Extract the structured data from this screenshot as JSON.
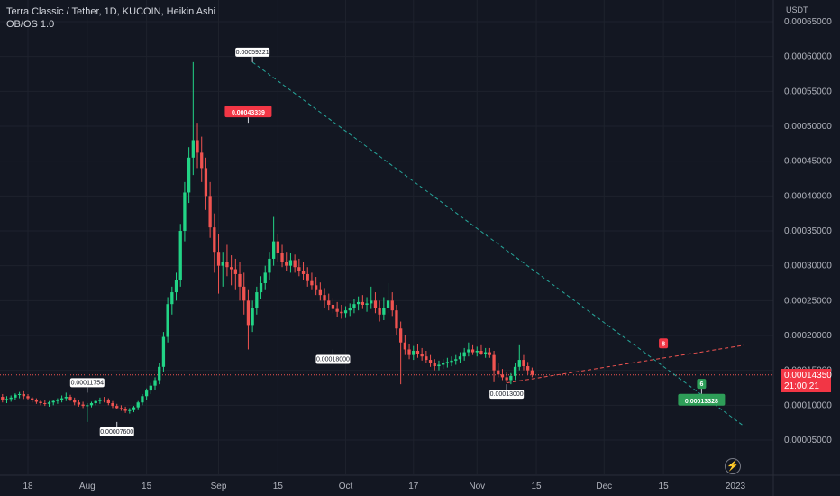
{
  "header": {
    "title": "Terra Classic / Tether, 1D, KUCOIN, Heikin Ashi",
    "indicator": "OB/OS 1.0"
  },
  "axis": {
    "currency": "USDT"
  },
  "last_price": {
    "value": "0.00014350",
    "countdown": "21:00:21"
  },
  "icons": {
    "bolt": "lightning-icon"
  },
  "colors": {
    "up": "#22d486",
    "down": "#f05350",
    "background": "#131722",
    "grid": "#1e222d",
    "trendline_green": "#26a69a",
    "trendline_red": "#f05350"
  },
  "chart_data": {
    "type": "candlestick",
    "style": "Heikin Ashi",
    "grid": true,
    "ylim": [
      5e-05,
      0.00065
    ],
    "y_ticks": [
      "0.00065000",
      "0.00060000",
      "0.00055000",
      "0.00050000",
      "0.00045000",
      "0.00040000",
      "0.00035000",
      "0.00030000",
      "0.00025000",
      "0.00020000",
      "0.00015000",
      "0.00010000",
      "0.00005000"
    ],
    "x_ticks": [
      "18",
      "Aug",
      "15",
      "Sep",
      "15",
      "Oct",
      "17",
      "Nov",
      "15",
      "Dec",
      "15",
      "2023"
    ],
    "x_tick_dates": [
      "2022-07-18",
      "2022-08-01",
      "2022-08-15",
      "2022-09-01",
      "2022-09-15",
      "2022-10-01",
      "2022-10-17",
      "2022-11-01",
      "2022-11-15",
      "2022-12-01",
      "2022-12-15",
      "2023-01-01"
    ],
    "start_date": "2022-07-11",
    "candles": [
      [
        0.000113,
        0.000118,
        0.000107,
        0.000112
      ],
      [
        0.000112,
        0.000116,
        0.000104,
        0.000108
      ],
      [
        0.000108,
        0.000113,
        0.000103,
        0.000109
      ],
      [
        0.000109,
        0.000114,
        0.000105,
        0.000111
      ],
      [
        0.000111,
        0.000117,
        0.000107,
        0.000115
      ],
      [
        0.000115,
        0.000119,
        0.00011,
        0.000116
      ],
      [
        0.000116,
        0.00012,
        0.000109,
        0.000113
      ],
      [
        0.000113,
        0.000116,
        0.000107,
        0.00011
      ],
      [
        0.00011,
        0.000112,
        0.000104,
        0.000107
      ],
      [
        0.000107,
        0.00011,
        0.000102,
        0.000105
      ],
      [
        0.000105,
        0.000108,
        0.0001,
        0.000103
      ],
      [
        0.000103,
        0.000107,
        9.9e-05,
        0.000102
      ],
      [
        0.000102,
        0.000106,
        9.8e-05,
        0.000104
      ],
      [
        0.000104,
        0.000108,
        0.0001,
        0.000106
      ],
      [
        0.000106,
        0.00011,
        0.000102,
        0.000108
      ],
      [
        0.000108,
        0.000114,
        0.000104,
        0.00011
      ],
      [
        0.00011,
        0.000118,
        0.000106,
        0.000112
      ],
      [
        0.000112,
        0.000115,
        0.000106,
        0.000108
      ],
      [
        0.000108,
        0.000111,
        0.0001,
        0.000104
      ],
      [
        0.000104,
        0.000108,
        9.8e-05,
        0.000101
      ],
      [
        0.000101,
        0.000105,
        9.6e-05,
        9.9e-05
      ],
      [
        9.9e-05,
        0.000103,
        7.6e-05,
        0.0001
      ],
      [
        0.0001,
        0.000105,
        9.7e-05,
        0.000103
      ],
      [
        0.000103,
        0.000108,
        0.0001,
        0.000106
      ],
      [
        0.000106,
        0.000111,
        0.000102,
        0.000108
      ],
      [
        0.000108,
        0.000112,
        0.000104,
        0.000107
      ],
      [
        0.000107,
        0.00011,
        0.0001,
        0.000103
      ],
      [
        0.000103,
        0.000106,
        9.6e-05,
        9.9e-05
      ],
      [
        9.9e-05,
        0.000102,
        9.4e-05,
        9.6e-05
      ],
      [
        9.6e-05,
        0.0001,
        9.2e-05,
        9.4e-05
      ],
      [
        9.4e-05,
        9.8e-05,
        8.9e-05,
        9.2e-05
      ],
      [
        9.2e-05,
        9.6e-05,
        8.8e-05,
        9.3e-05
      ],
      [
        9.3e-05,
        9.9e-05,
        9e-05,
        9.7e-05
      ],
      [
        9.7e-05,
        0.000106,
        9.3e-05,
        0.000104
      ],
      [
        0.000104,
        0.000116,
        0.0001,
        0.000113
      ],
      [
        0.000113,
        0.000124,
        0.000108,
        0.000121
      ],
      [
        0.000121,
        0.000132,
        0.000116,
        0.000128
      ],
      [
        0.000128,
        0.00014,
        0.000122,
        0.000136
      ],
      [
        0.000136,
        0.00016,
        0.00013,
        0.000155
      ],
      [
        0.000155,
        0.000205,
        0.000148,
        0.000198
      ],
      [
        0.000198,
        0.000255,
        0.00019,
        0.000245
      ],
      [
        0.000245,
        0.00027,
        0.00023,
        0.000262
      ],
      [
        0.000262,
        0.00029,
        0.00025,
        0.00028
      ],
      [
        0.00028,
        0.00036,
        0.00027,
        0.00035
      ],
      [
        0.00035,
        0.00042,
        0.000335,
        0.000405
      ],
      [
        0.000405,
        0.00047,
        0.00039,
        0.000455
      ],
      [
        0.000455,
        0.000592,
        0.00043,
        0.00048
      ],
      [
        0.00048,
        0.000505,
        0.00044,
        0.000462
      ],
      [
        0.000462,
        0.000485,
        0.00042,
        0.00044
      ],
      [
        0.00044,
        0.000455,
        0.00038,
        0.0004
      ],
      [
        0.0004,
        0.00042,
        0.00034,
        0.000355
      ],
      [
        0.000355,
        0.000375,
        0.00029,
        0.00032
      ],
      [
        0.00032,
        0.000345,
        0.00026,
        0.0003
      ],
      [
        0.0003,
        0.00032,
        0.00027,
        0.000305
      ],
      [
        0.000305,
        0.00033,
        0.000285,
        0.000298
      ],
      [
        0.000298,
        0.000315,
        0.000272,
        0.000295
      ],
      [
        0.000295,
        0.00031,
        0.000265,
        0.000288
      ],
      [
        0.000288,
        0.000305,
        0.00025,
        0.00027
      ],
      [
        0.00027,
        0.00029,
        0.00023,
        0.00025
      ],
      [
        0.00025,
        0.000265,
        0.00018,
        0.000215
      ],
      [
        0.000215,
        0.00025,
        0.000205,
        0.00024
      ],
      [
        0.00024,
        0.00027,
        0.00023,
        0.000262
      ],
      [
        0.000262,
        0.000285,
        0.000252,
        0.000275
      ],
      [
        0.000275,
        0.0003,
        0.000265,
        0.00029
      ],
      [
        0.00029,
        0.00032,
        0.00028,
        0.00031
      ],
      [
        0.00031,
        0.00037,
        0.0003,
        0.000335
      ],
      [
        0.000335,
        0.000345,
        0.000305,
        0.000318
      ],
      [
        0.000318,
        0.00033,
        0.000298,
        0.000305
      ],
      [
        0.000305,
        0.00032,
        0.000292,
        0.0003
      ],
      [
        0.0003,
        0.000318,
        0.00029,
        0.000308
      ],
      [
        0.000308,
        0.000316,
        0.00029,
        0.000298
      ],
      [
        0.000298,
        0.00031,
        0.000285,
        0.000292
      ],
      [
        0.000292,
        0.000305,
        0.00028,
        0.000288
      ],
      [
        0.000288,
        0.000298,
        0.00027,
        0.000278
      ],
      [
        0.000278,
        0.00029,
        0.000265,
        0.000272
      ],
      [
        0.000272,
        0.000284,
        0.000258,
        0.000265
      ],
      [
        0.000265,
        0.000276,
        0.00025,
        0.000258
      ],
      [
        0.000258,
        0.000268,
        0.00024,
        0.00025
      ],
      [
        0.00025,
        0.00026,
        0.000236,
        0.000244
      ],
      [
        0.000244,
        0.000254,
        0.000232,
        0.000238
      ],
      [
        0.000238,
        0.000248,
        0.000226,
        0.000234
      ],
      [
        0.000234,
        0.000244,
        0.000224,
        0.000232
      ],
      [
        0.000232,
        0.000242,
        0.000225,
        0.000236
      ],
      [
        0.000236,
        0.000246,
        0.000228,
        0.00024
      ],
      [
        0.00024,
        0.000252,
        0.000232,
        0.000245
      ],
      [
        0.000245,
        0.000256,
        0.000236,
        0.000248
      ],
      [
        0.000248,
        0.000258,
        0.000238,
        0.000244
      ],
      [
        0.000244,
        0.000255,
        0.000234,
        0.000246
      ],
      [
        0.000246,
        0.00027,
        0.000238,
        0.00025
      ],
      [
        0.00025,
        0.000262,
        0.000232,
        0.00024
      ],
      [
        0.00024,
        0.00025,
        0.00022,
        0.00023
      ],
      [
        0.00023,
        0.000255,
        0.000222,
        0.00024
      ],
      [
        0.00024,
        0.000275,
        0.000232,
        0.00025
      ],
      [
        0.00025,
        0.000262,
        0.000228,
        0.000236
      ],
      [
        0.000236,
        0.000244,
        0.0002,
        0.00021
      ],
      [
        0.00021,
        0.00022,
        0.00013,
        0.00019
      ],
      [
        0.00019,
        0.0002,
        0.000172,
        0.00018
      ],
      [
        0.00018,
        0.000188,
        0.000166,
        0.000172
      ],
      [
        0.000172,
        0.000185,
        0.000165,
        0.000178
      ],
      [
        0.000178,
        0.000188,
        0.000168,
        0.000174
      ],
      [
        0.000174,
        0.000182,
        0.000164,
        0.00017
      ],
      [
        0.00017,
        0.000178,
        0.00016,
        0.000165
      ],
      [
        0.000165,
        0.000172,
        0.000155,
        0.00016
      ],
      [
        0.00016,
        0.000166,
        0.00015,
        0.000156
      ],
      [
        0.000156,
        0.000164,
        0.00015,
        0.000158
      ],
      [
        0.000158,
        0.000166,
        0.000152,
        0.00016
      ],
      [
        0.00016,
        0.000168,
        0.000154,
        0.000162
      ],
      [
        0.000162,
        0.00017,
        0.000156,
        0.000164
      ],
      [
        0.000164,
        0.000172,
        0.000158,
        0.000166
      ],
      [
        0.000166,
        0.000176,
        0.00016,
        0.00017
      ],
      [
        0.00017,
        0.000182,
        0.000164,
        0.000176
      ],
      [
        0.000176,
        0.00019,
        0.00017,
        0.00018
      ],
      [
        0.00018,
        0.000186,
        0.000172,
        0.000176
      ],
      [
        0.000176,
        0.000184,
        0.00017,
        0.000178
      ],
      [
        0.000178,
        0.000186,
        0.000172,
        0.000174
      ],
      [
        0.000174,
        0.000182,
        0.000168,
        0.000176
      ],
      [
        0.000176,
        0.000182,
        0.000168,
        0.000172
      ],
      [
        0.000172,
        0.000178,
        0.000133,
        0.00015
      ],
      [
        0.00015,
        0.00016,
        0.00014,
        0.000144
      ],
      [
        0.000144,
        0.000152,
        0.000136,
        0.00014
      ],
      [
        0.00014,
        0.000148,
        0.000132,
        0.000136
      ],
      [
        0.000136,
        0.000146,
        0.00013,
        0.000142
      ],
      [
        0.000142,
        0.00016,
        0.000136,
        0.000155
      ],
      [
        0.000155,
        0.000186,
        0.00015,
        0.000165
      ],
      [
        0.000165,
        0.000172,
        0.00015,
        0.000156
      ],
      [
        0.000156,
        0.000162,
        0.000144,
        0.00015
      ],
      [
        0.00015,
        0.000154,
        0.00014,
        0.0001435
      ]
    ],
    "annotations": {
      "labels": [
        {
          "text": "0.00059221",
          "date": "2022-09-09",
          "price": 0.000592,
          "style": "white",
          "side": "above"
        },
        {
          "text": "0.00043339",
          "date": "2022-09-08",
          "price": 0.000505,
          "style": "red",
          "side": "above"
        },
        {
          "text": "0.00018000",
          "date": "2022-09-28",
          "price": 0.00018,
          "style": "white",
          "side": "below"
        },
        {
          "text": "0.00013000",
          "date": "2022-11-08",
          "price": 0.00013,
          "style": "white",
          "side": "below"
        },
        {
          "text": "0.00011754",
          "date": "2022-08-01",
          "price": 0.000118,
          "style": "white",
          "side": "above"
        },
        {
          "text": "0.00007600",
          "date": "2022-08-08",
          "price": 7.6e-05,
          "style": "white",
          "side": "below"
        },
        {
          "text": "0.00013328",
          "date": "2022-12-24",
          "price": 0.000124,
          "style": "green",
          "side": "below"
        }
      ],
      "markers": [
        {
          "text": "8",
          "date": "2022-12-15",
          "price": 0.000188,
          "style": "red"
        },
        {
          "text": "6",
          "date": "2022-12-24",
          "price": 0.00013,
          "style": "green"
        }
      ],
      "trendlines": [
        {
          "style": "green-dashed",
          "from": {
            "date": "2022-09-09",
            "price": 0.000592
          },
          "to": {
            "date": "2023-01-03",
            "price": 7e-05
          }
        },
        {
          "style": "red-dashed",
          "from": {
            "date": "2022-11-08",
            "price": 0.000132
          },
          "to": {
            "date": "2023-01-03",
            "price": 0.000186
          }
        }
      ],
      "last_price_line": 0.0001435
    }
  }
}
